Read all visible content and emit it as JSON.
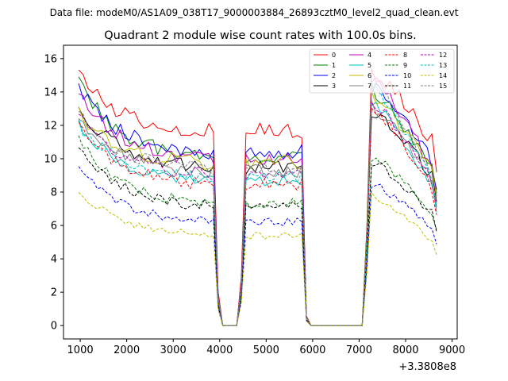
{
  "chart_data": {
    "type": "line",
    "suptitle": "Data file: modeM0/AS1A09_038T17_9000003884_26893cztM0_level2_quad_clean.evt",
    "title": "Quadrant 2 module wise count rates with 100.0s bins.",
    "xlabel": "",
    "ylabel": "",
    "x_offset_label": "+3.3808e8",
    "xlim": [
      640,
      9110
    ],
    "ylim": [
      -0.8,
      16.8
    ],
    "xticks": [
      1000,
      2000,
      3000,
      4000,
      5000,
      6000,
      7000,
      8000,
      9000
    ],
    "yticks": [
      0,
      2,
      4,
      6,
      8,
      10,
      12,
      14,
      16
    ],
    "x": [
      966,
      1066,
      1166,
      1266,
      1366,
      1466,
      1566,
      1666,
      1766,
      1866,
      1966,
      2066,
      2166,
      2266,
      2366,
      2466,
      2566,
      2666,
      2766,
      2866,
      2966,
      3066,
      3166,
      3266,
      3366,
      3466,
      3566,
      3666,
      3766,
      3866,
      3966,
      4066,
      4166,
      4266,
      4366,
      4466,
      4566,
      4666,
      4766,
      4866,
      4966,
      5066,
      5166,
      5266,
      5366,
      5466,
      5566,
      5666,
      5766,
      5866,
      5966,
      6066,
      6166,
      6266,
      6366,
      6466,
      6566,
      6666,
      6766,
      6866,
      6966,
      7066,
      7166,
      7266,
      7366,
      7466,
      7566,
      7666,
      7766,
      7866,
      7966,
      8066,
      8166,
      8266,
      8366,
      8466,
      8566,
      8666
    ],
    "series": [
      {
        "name": "0",
        "base": 11.5,
        "start": 15.0,
        "peak": 15.3,
        "color": "#ff0000",
        "dash": "solid"
      },
      {
        "name": "1",
        "base": 9.9,
        "start": 14.6,
        "peak": 14.2,
        "color": "#008000",
        "dash": "solid"
      },
      {
        "name": "2",
        "base": 10.2,
        "start": 14.3,
        "peak": 14.4,
        "color": "#0000ff",
        "dash": "solid"
      },
      {
        "name": "3",
        "base": 9.3,
        "start": 13.1,
        "peak": 13.0,
        "color": "#000000",
        "dash": "solid"
      },
      {
        "name": "4",
        "base": 9.7,
        "start": 14.1,
        "peak": 14.9,
        "color": "#bf00bf",
        "dash": "solid"
      },
      {
        "name": "5",
        "base": 8.5,
        "start": 12.1,
        "peak": 13.6,
        "color": "#00bfbf",
        "dash": "solid"
      },
      {
        "name": "6",
        "base": 9.6,
        "start": 12.8,
        "peak": 14.0,
        "color": "#bfbf00",
        "dash": "solid"
      },
      {
        "name": "7",
        "base": 9.1,
        "start": 12.5,
        "peak": 13.3,
        "color": "#808080",
        "dash": "solid"
      },
      {
        "name": "8",
        "base": 8.3,
        "start": 12.0,
        "peak": 13.2,
        "color": "#ff0000",
        "dash": "dashed"
      },
      {
        "name": "9",
        "base": 7.2,
        "start": 11.2,
        "peak": 10.2,
        "color": "#008000",
        "dash": "dashed"
      },
      {
        "name": "10",
        "base": 6.1,
        "start": 9.4,
        "peak": 8.6,
        "color": "#0000ff",
        "dash": "dashed"
      },
      {
        "name": "11",
        "base": 7.0,
        "start": 10.8,
        "peak": 9.9,
        "color": "#000000",
        "dash": "dashed"
      },
      {
        "name": "12",
        "base": 8.9,
        "start": 12.6,
        "peak": 13.5,
        "color": "#bf00bf",
        "dash": "dashed"
      },
      {
        "name": "13",
        "base": 8.7,
        "start": 12.0,
        "peak": 14.5,
        "color": "#00bfbf",
        "dash": "dashed"
      },
      {
        "name": "14",
        "base": 5.3,
        "start": 8.1,
        "peak": 7.9,
        "color": "#bfbf00",
        "dash": "dashed"
      },
      {
        "name": "15",
        "base": 9.2,
        "start": 12.6,
        "peak": 14.8,
        "color": "#808080",
        "dash": "dashed"
      }
    ],
    "legend_position": "top-right",
    "legend_columns": 4,
    "grid": false
  }
}
